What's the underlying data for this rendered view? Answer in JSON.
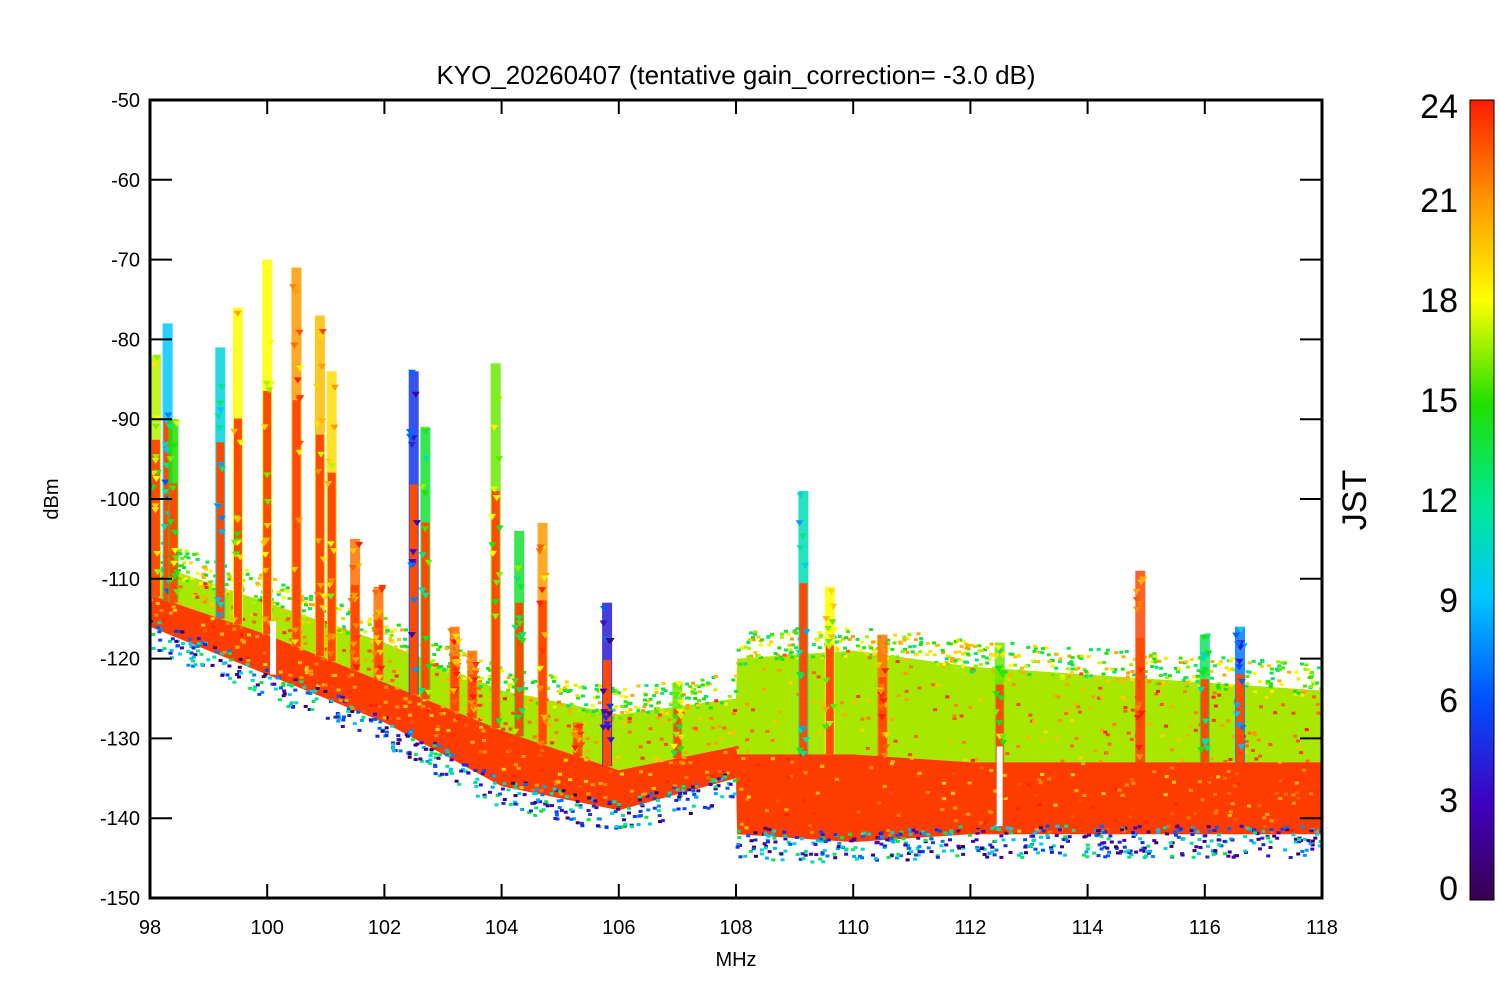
{
  "chart_data": {
    "type": "scatter",
    "title": "KYO_20260407 (tentative gain_correction= -3.0 dB)",
    "xlabel": "MHz",
    "ylabel": "dBm",
    "xlim": [
      98,
      118
    ],
    "ylim": [
      -150,
      -50
    ],
    "x_ticks": [
      "98",
      "100",
      "102",
      "104",
      "106",
      "108",
      "110",
      "112",
      "114",
      "116",
      "118"
    ],
    "y_ticks": [
      "-50",
      "-60",
      "-70",
      "-80",
      "-90",
      "-100",
      "-110",
      "-120",
      "-130",
      "-140",
      "-150"
    ],
    "colorbar": {
      "title": "JST",
      "min": 0,
      "max": 24,
      "ticks": [
        "24",
        "21",
        "18",
        "15",
        "12",
        "9",
        "6",
        "3",
        "0"
      ]
    },
    "noise_floor_upper": [
      [
        98,
        -108
      ],
      [
        100,
        -113
      ],
      [
        102,
        -118
      ],
      [
        104,
        -124
      ],
      [
        106,
        -127
      ],
      [
        108,
        -125
      ],
      [
        108.02,
        -120
      ],
      [
        110,
        -119
      ],
      [
        112,
        -121
      ],
      [
        114,
        -122
      ],
      [
        116,
        -123
      ],
      [
        118,
        -124
      ]
    ],
    "noise_floor_core": [
      [
        98,
        -112
      ],
      [
        100,
        -117
      ],
      [
        102,
        -123
      ],
      [
        104,
        -129
      ],
      [
        106,
        -134
      ],
      [
        108,
        -131
      ],
      [
        108.02,
        -132
      ],
      [
        110,
        -132
      ],
      [
        112,
        -133
      ],
      [
        114,
        -133
      ],
      [
        116,
        -133
      ],
      [
        118,
        -133
      ]
    ],
    "noise_floor_lower": [
      [
        98,
        -116
      ],
      [
        100,
        -122
      ],
      [
        102,
        -128
      ],
      [
        104,
        -136
      ],
      [
        106,
        -139
      ],
      [
        108,
        -135
      ],
      [
        108.02,
        -142
      ],
      [
        110,
        -143
      ],
      [
        112,
        -142
      ],
      [
        114,
        -142
      ],
      [
        116,
        -142
      ],
      [
        118,
        -142
      ]
    ],
    "signals": [
      {
        "freq": 98.1,
        "peak": -82,
        "jst": 17
      },
      {
        "freq": 98.3,
        "peak": -78,
        "jst": 9
      },
      {
        "freq": 98.4,
        "peak": -90,
        "jst": 15
      },
      {
        "freq": 99.2,
        "peak": -81,
        "jst": 10
      },
      {
        "freq": 99.5,
        "peak": -76,
        "jst": 18
      },
      {
        "freq": 100.0,
        "peak": -70,
        "jst": 18
      },
      {
        "freq": 100.5,
        "peak": -71,
        "jst": 21
      },
      {
        "freq": 100.9,
        "peak": -77,
        "jst": 20
      },
      {
        "freq": 101.1,
        "peak": -84,
        "jst": 19
      },
      {
        "freq": 101.5,
        "peak": -105,
        "jst": 22
      },
      {
        "freq": 101.9,
        "peak": -111,
        "jst": 22
      },
      {
        "freq": 102.5,
        "peak": -84,
        "jst": 5
      },
      {
        "freq": 102.7,
        "peak": -91,
        "jst": 14
      },
      {
        "freq": 103.2,
        "peak": -116,
        "jst": 22
      },
      {
        "freq": 103.5,
        "peak": -119,
        "jst": 22
      },
      {
        "freq": 103.9,
        "peak": -83,
        "jst": 16
      },
      {
        "freq": 104.3,
        "peak": -104,
        "jst": 14
      },
      {
        "freq": 104.7,
        "peak": -103,
        "jst": 21
      },
      {
        "freq": 105.3,
        "peak": -128,
        "jst": 22
      },
      {
        "freq": 105.8,
        "peak": -113,
        "jst": 4
      },
      {
        "freq": 107.0,
        "peak": -123,
        "jst": 16
      },
      {
        "freq": 109.15,
        "peak": -99,
        "jst": 11
      },
      {
        "freq": 109.6,
        "peak": -111,
        "jst": 18
      },
      {
        "freq": 110.5,
        "peak": -117,
        "jst": 22
      },
      {
        "freq": 112.5,
        "peak": -118,
        "jst": 16
      },
      {
        "freq": 114.9,
        "peak": -109,
        "jst": 23
      },
      {
        "freq": 116.0,
        "peak": -117,
        "jst": 13
      },
      {
        "freq": 116.6,
        "peak": -116,
        "jst": 7
      }
    ],
    "dropouts": [
      {
        "freq": 112.5,
        "bottom": -141
      },
      {
        "freq": 100.1,
        "bottom": -122
      }
    ]
  }
}
